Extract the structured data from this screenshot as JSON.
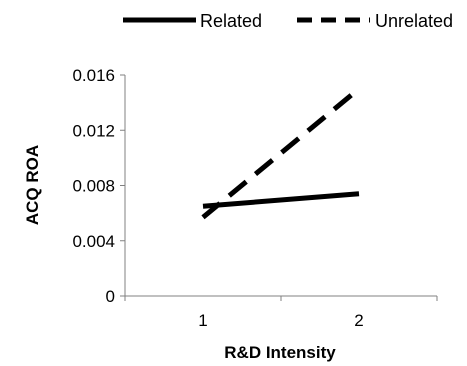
{
  "chart_data": {
    "type": "line",
    "categories": [
      "1",
      "2"
    ],
    "xlabel": "R&D Intensity",
    "ylabel": "ACQ ROA",
    "ylim": [
      0,
      0.016
    ],
    "y_ticks": [
      "0",
      "0.004",
      "0.008",
      "0.012",
      "0.016"
    ],
    "grid": false,
    "legend_position": "top",
    "series": [
      {
        "name": "Related",
        "values": [
          0.0065,
          0.0074
        ],
        "line_style": "solid",
        "color": "#000000"
      },
      {
        "name": "Unrelated",
        "values": [
          0.0057,
          0.015
        ],
        "line_style": "dashed",
        "color": "#000000"
      }
    ]
  }
}
